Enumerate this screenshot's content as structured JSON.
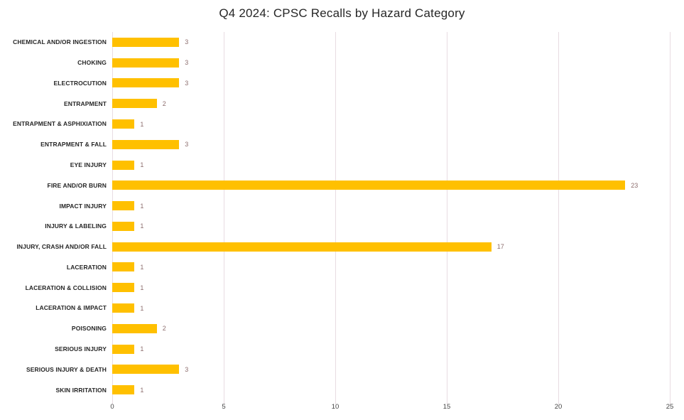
{
  "chart_data": {
    "type": "bar",
    "orientation": "horizontal",
    "title": "Q4 2024: CPSC Recalls by Hazard Category",
    "categories": [
      "CHEMICAL AND/OR INGESTION",
      "CHOKING",
      "ELECTROCUTION",
      "ENTRAPMENT",
      "ENTRAPMENT & ASPHIXIATION",
      "ENTRAPMENT & FALL",
      "EYE INJURY",
      "FIRE AND/OR BURN",
      "IMPACT INJURY",
      "INJURY & LABELING",
      "INJURY, CRASH AND/OR FALL",
      "LACERATION",
      "LACERATION & COLLISION",
      "LACERATION & IMPACT",
      "POISONING",
      "SERIOUS INJURY",
      "SERIOUS INJURY & DEATH",
      "SKIN IRRITATION"
    ],
    "values": [
      3,
      3,
      3,
      2,
      1,
      3,
      1,
      23,
      1,
      1,
      17,
      1,
      1,
      1,
      2,
      1,
      3,
      1
    ],
    "xlabel": "",
    "ylabel": "",
    "xlim": [
      0,
      25
    ],
    "x_ticks": [
      0,
      5,
      10,
      15,
      20,
      25
    ],
    "grid": "vertical",
    "legend": "none",
    "data_labels": "outside-end",
    "colors": {
      "bar": "#FFC000",
      "value_label": "#8D6E6E",
      "category_label": "#262626",
      "tick_label": "#454545",
      "gridline": "#E8DCE2"
    }
  }
}
